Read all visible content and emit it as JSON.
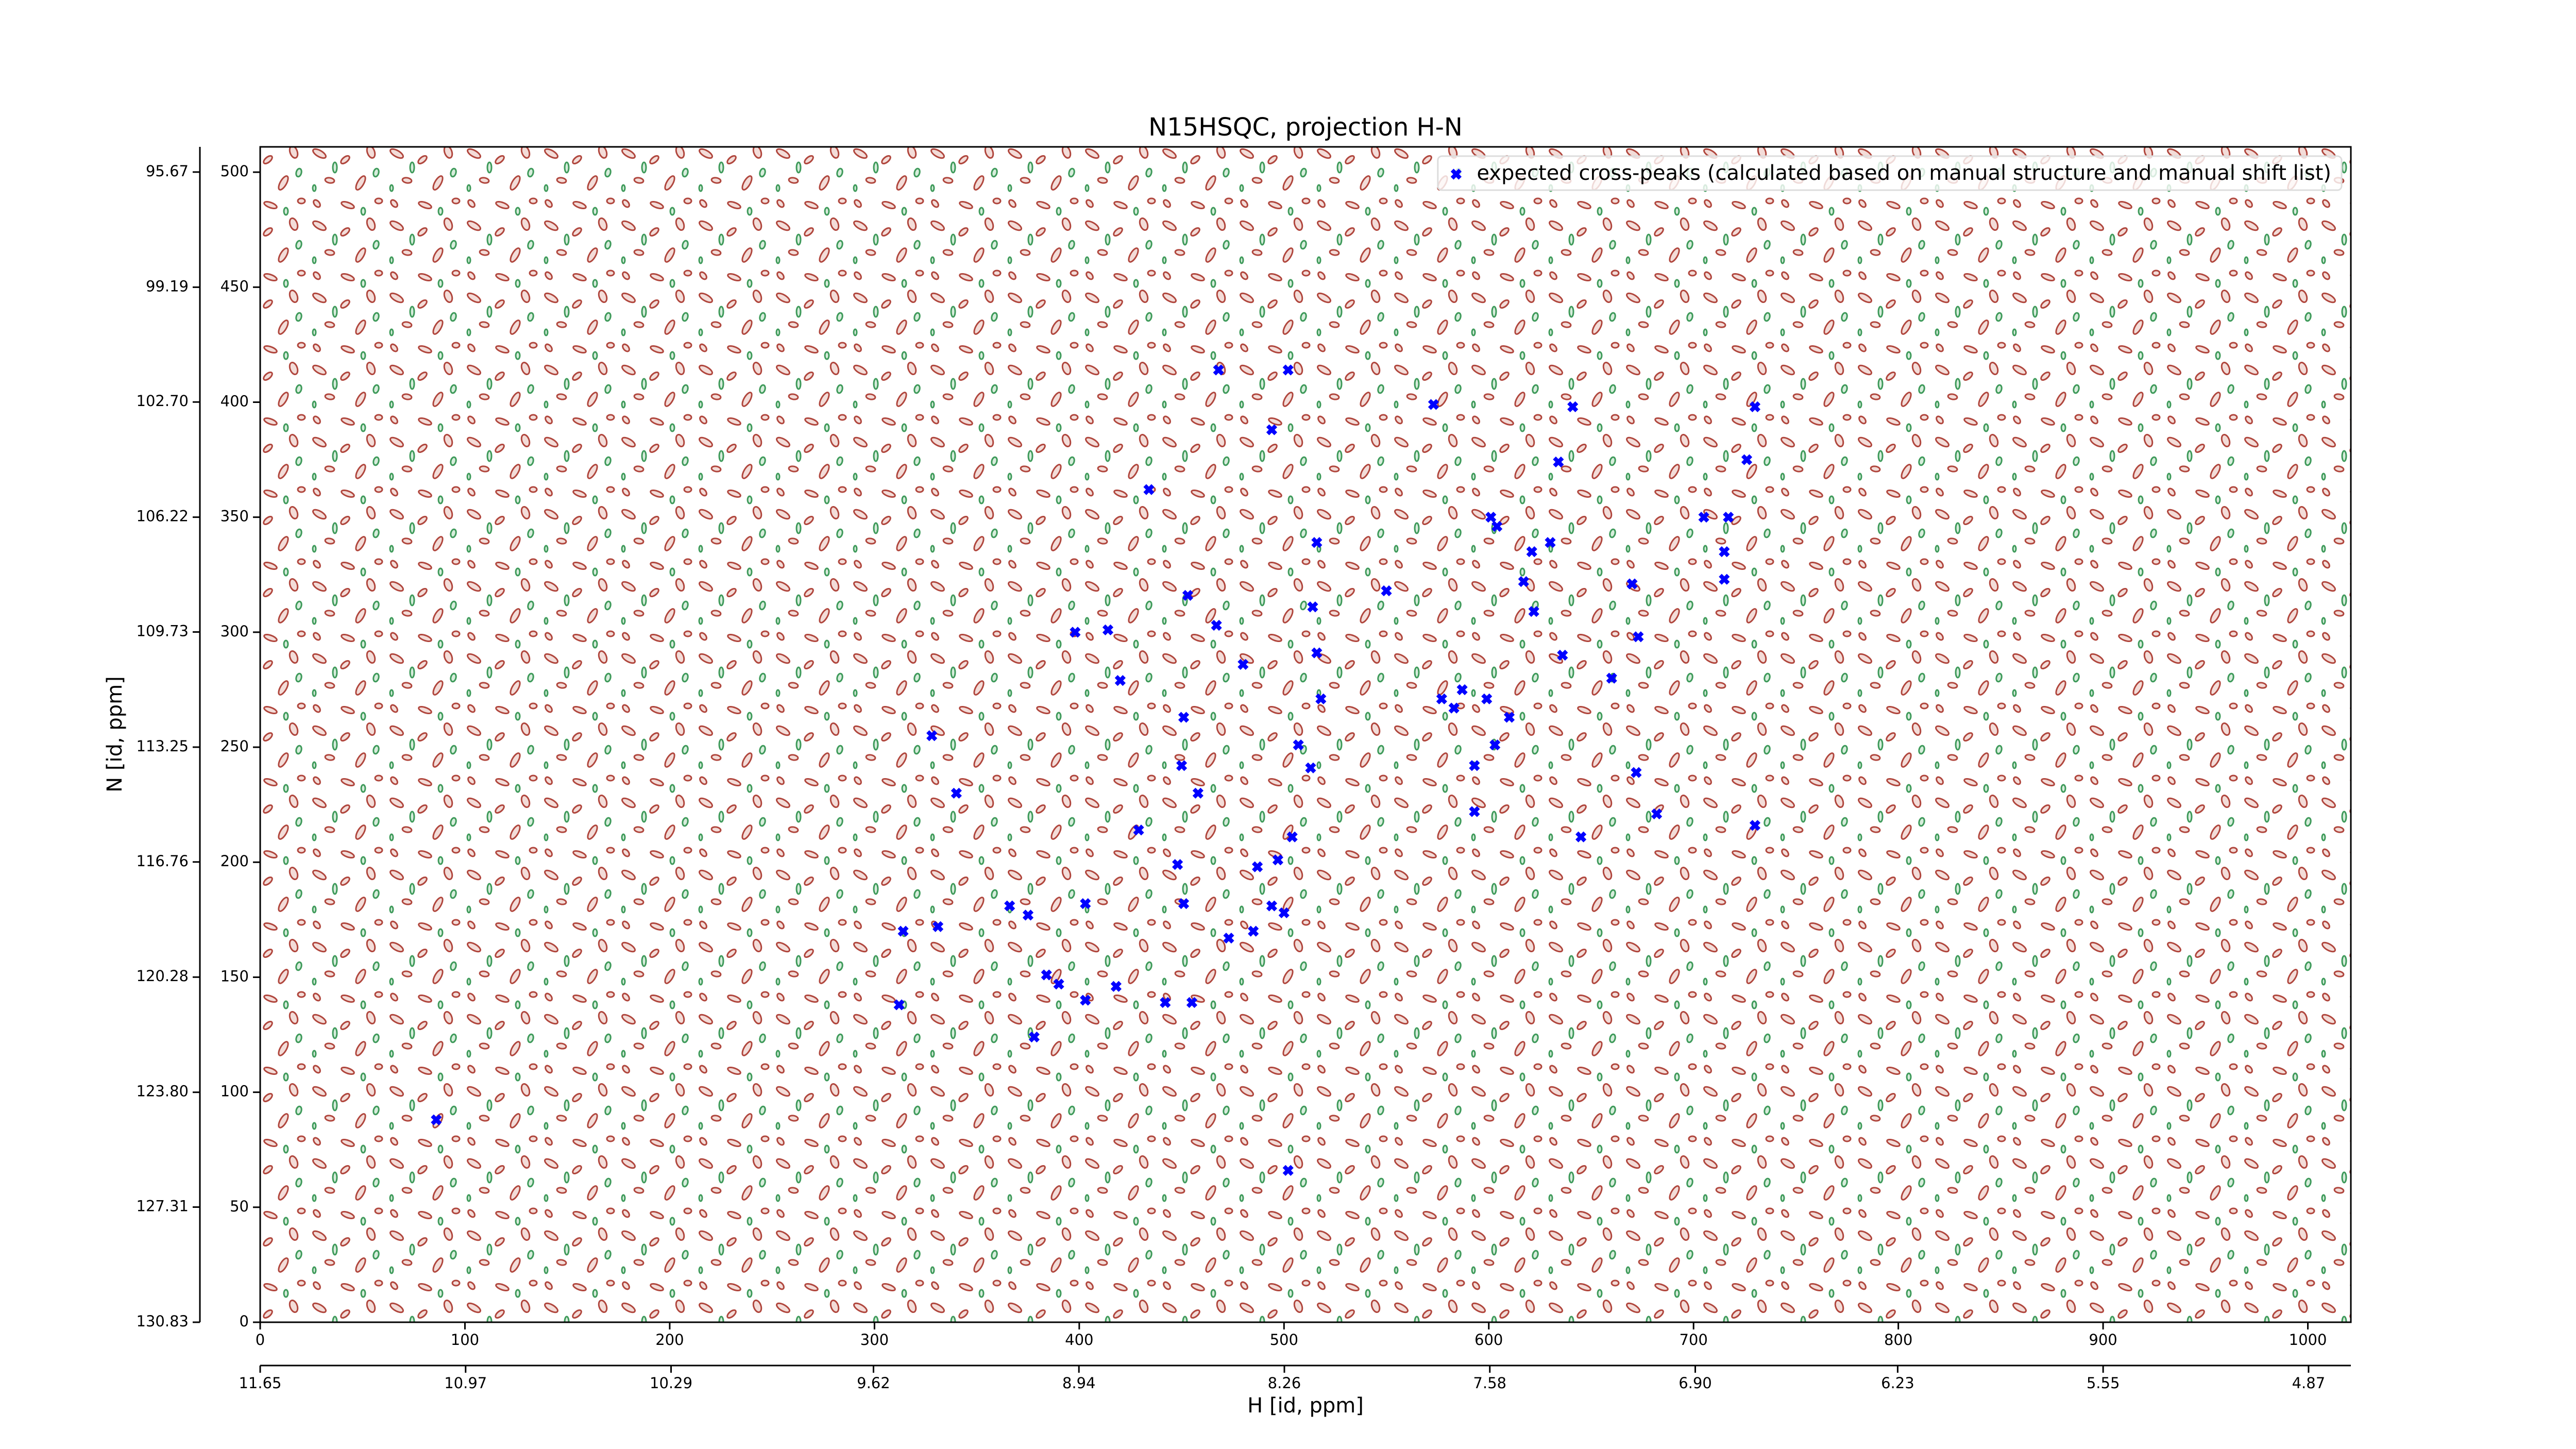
{
  "chart_data": {
    "type": "scatter",
    "title": "N15HSQC, projection H-N",
    "x_label": "H [id, ppm]",
    "y_label": "N [id, ppm]",
    "x": [
      468,
      502,
      494,
      573,
      641,
      730,
      634,
      726,
      434,
      601,
      604,
      705,
      717,
      516,
      630,
      621,
      715,
      617,
      715,
      670,
      453,
      550,
      514,
      622,
      467,
      398,
      414,
      673,
      516,
      636,
      480,
      420,
      660,
      577,
      587,
      583,
      599,
      518,
      610,
      451,
      328,
      507,
      603,
      450,
      593,
      513,
      672,
      340,
      458,
      593,
      682,
      730,
      429,
      645,
      504,
      497,
      487,
      448,
      366,
      403,
      375,
      451,
      494,
      500,
      331,
      314,
      485,
      473,
      384,
      390,
      418,
      403,
      442,
      455,
      312,
      378,
      86,
      502
    ],
    "series": [
      {
        "name": "expected cross-peaks (calculated based on manual structure and manual shift list)",
        "color": "#0000ff",
        "values": [
          414,
          414,
          388,
          399,
          398,
          398,
          374,
          375,
          362,
          350,
          346,
          350,
          350,
          339,
          339,
          335,
          335,
          322,
          323,
          321,
          316,
          318,
          311,
          309,
          303,
          300,
          301,
          298,
          291,
          290,
          286,
          279,
          280,
          271,
          275,
          267,
          271,
          271,
          263,
          263,
          255,
          251,
          251,
          242,
          242,
          241,
          239,
          230,
          230,
          222,
          221,
          216,
          214,
          211,
          211,
          201,
          198,
          199,
          181,
          182,
          177,
          182,
          181,
          178,
          172,
          170,
          170,
          167,
          151,
          147,
          146,
          140,
          139,
          139,
          138,
          124,
          88,
          66
        ]
      }
    ],
    "xlim": [
      0,
      1021
    ],
    "xticks": [
      0,
      100,
      200,
      300,
      400,
      500,
      600,
      700,
      800,
      900,
      1000
    ],
    "ylim": [
      0,
      511
    ],
    "yticks": [
      0,
      50,
      100,
      150,
      200,
      250,
      300,
      350,
      400,
      450,
      500
    ],
    "x2lim": [
      11.65,
      4.73
    ],
    "x2ticks": [
      11.65,
      10.97,
      10.29,
      9.62,
      8.94,
      8.26,
      7.58,
      {
        "value": 6.9,
        "label": "6.90"
      },
      6.23,
      5.55,
      4.87
    ],
    "y2lim": [
      130.83,
      94.9
    ],
    "y2ticks": [
      130.83,
      127.31,
      {
        "value": 123.8,
        "label": "123.80"
      },
      120.28,
      116.76,
      113.25,
      109.73,
      106.22,
      {
        "value": 102.7,
        "label": "102.70"
      },
      99.19,
      95.67
    ],
    "legend": "upper right"
  }
}
